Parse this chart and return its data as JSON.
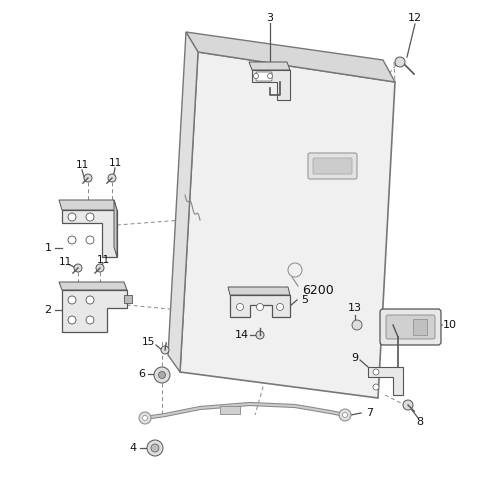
{
  "background_color": "#ffffff",
  "label_color": "#111111",
  "door_color": "#f2f2f2",
  "door_edge_color": "#888888",
  "part_color": "#e8e8e8",
  "part_edge": "#555555"
}
